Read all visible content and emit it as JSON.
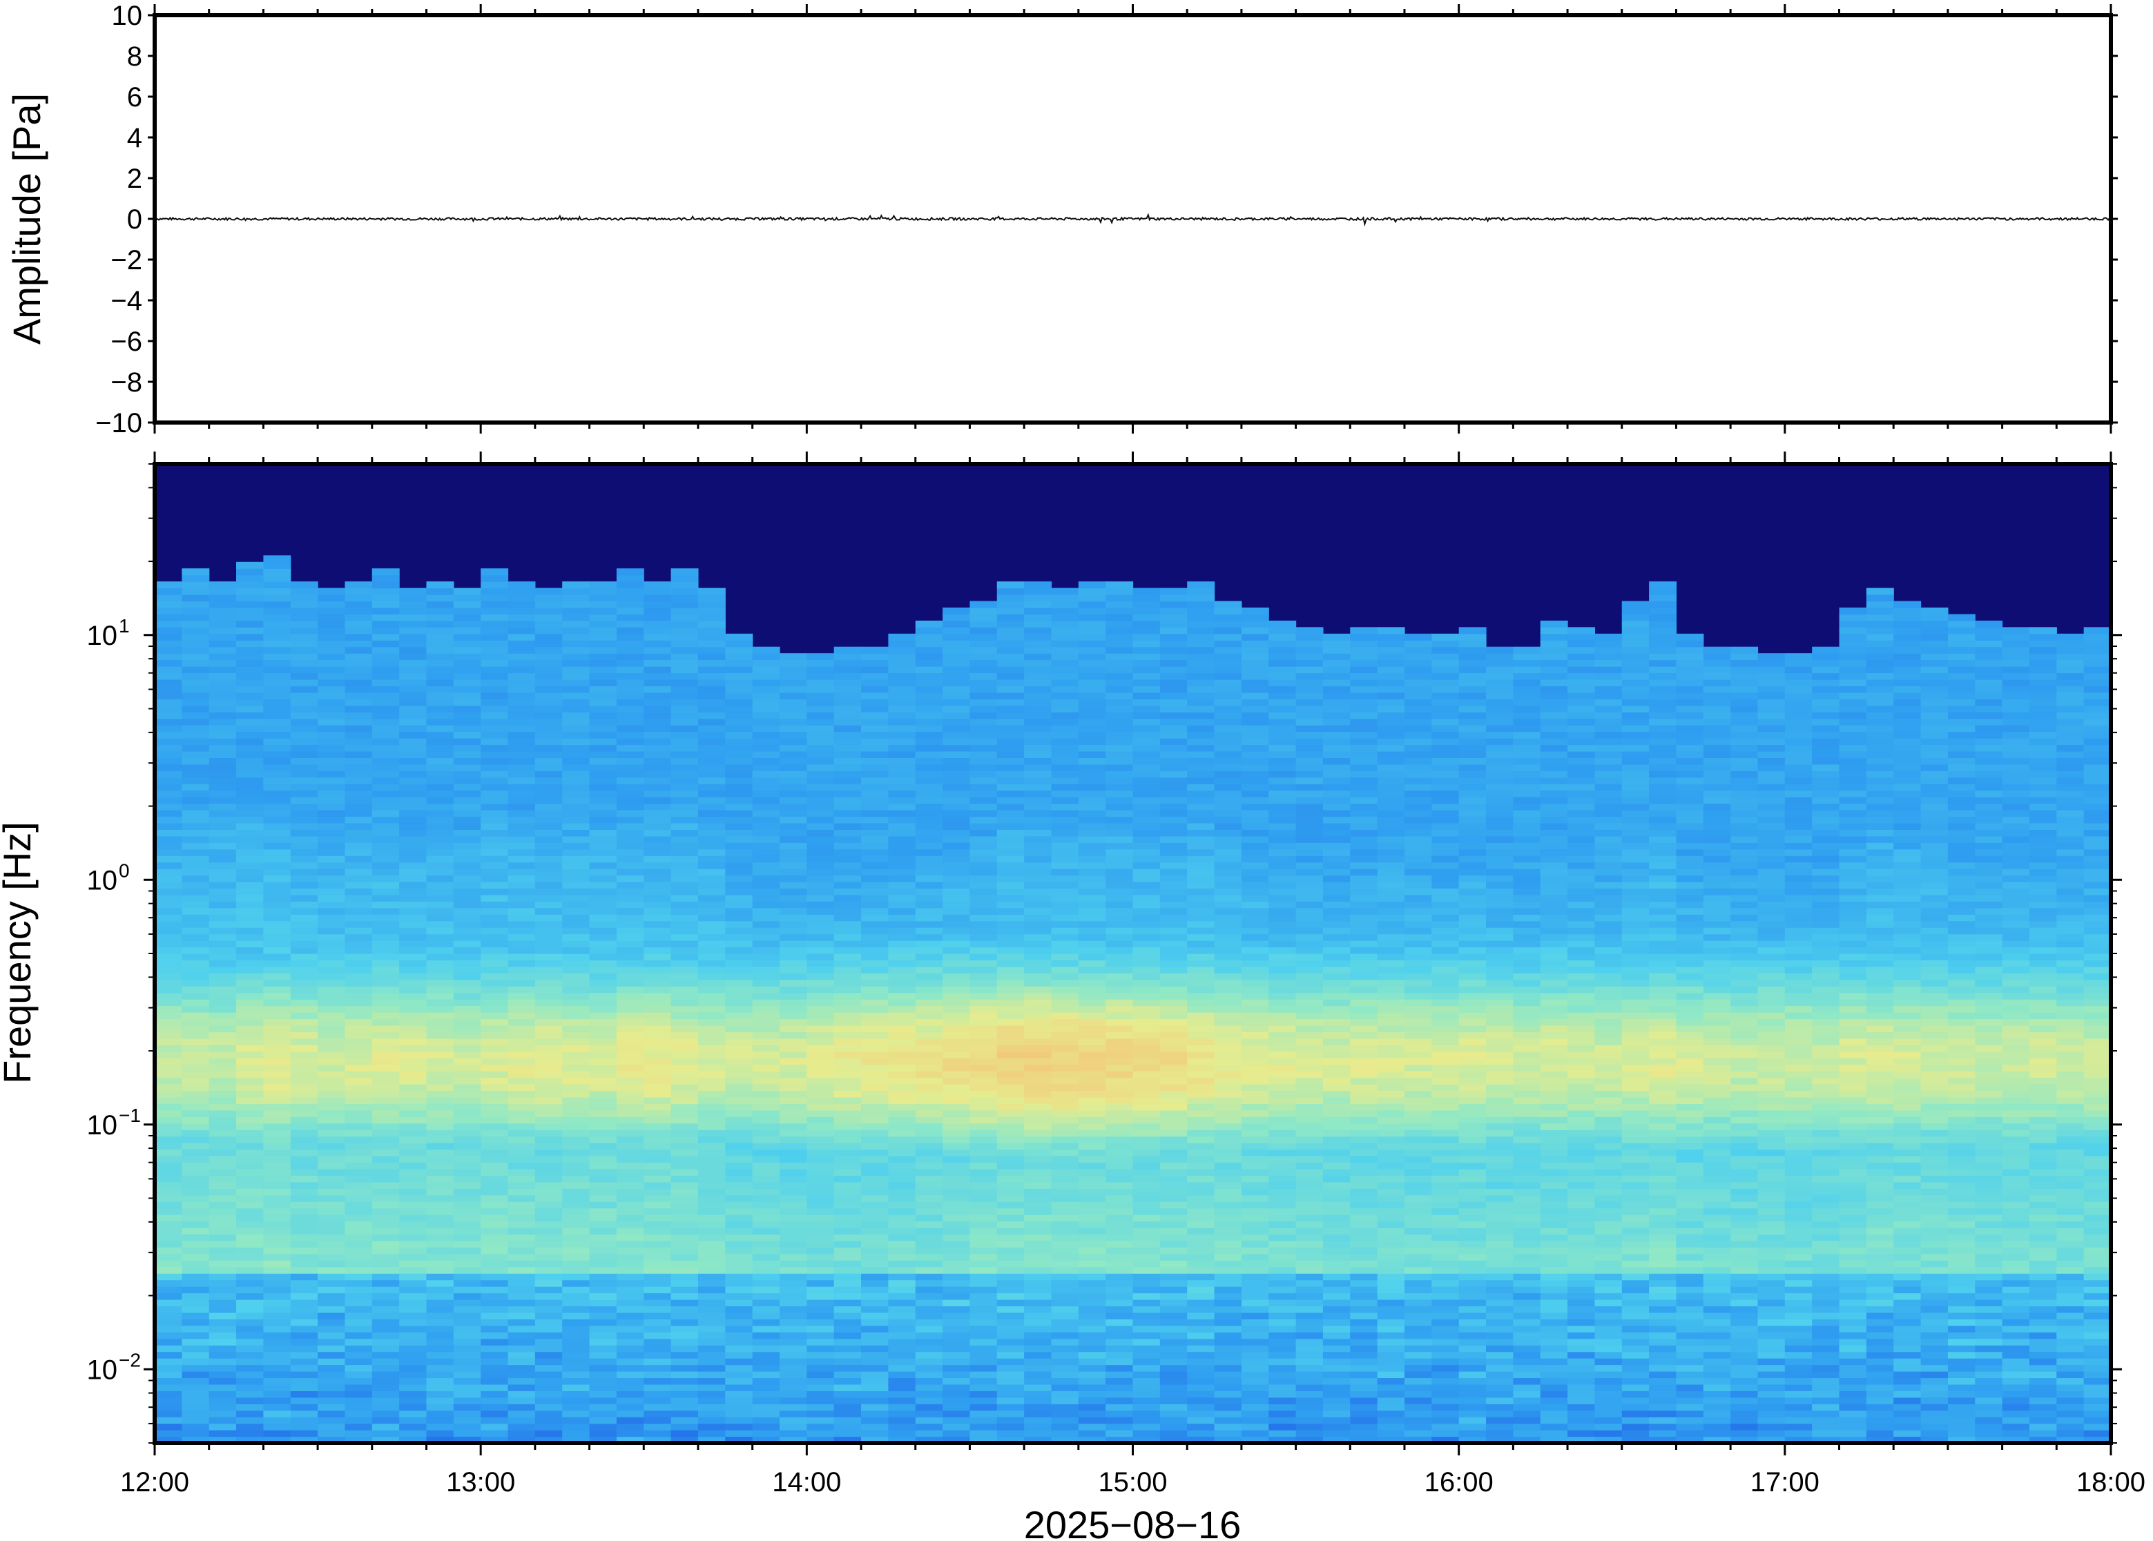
{
  "chart_data": [
    {
      "type": "line",
      "ylabel": "Amplitude [Pa]",
      "ylim": [
        -10,
        10
      ],
      "yticks": [
        10,
        8,
        6,
        4,
        2,
        0,
        -2,
        -4,
        -6,
        -8,
        -10
      ],
      "ytick_labels": [
        "10",
        "8",
        "6",
        "4",
        "2",
        "0",
        "−2",
        "−4",
        "−6",
        "−8",
        "−10"
      ],
      "x_start_hour": 12,
      "x_end_hour": 18,
      "series": [
        {
          "values": [
            0.02,
            -0.03,
            0.05,
            -0.02,
            0.04,
            -0.06,
            0.03,
            0.08,
            -0.04,
            0.06,
            -0.05,
            0.1,
            -0.08,
            0.12,
            -0.1,
            0.06,
            0.18,
            -0.15,
            0.22,
            -0.12,
            0.14,
            0.28,
            -0.2,
            0.08,
            -0.06,
            0.05,
            0.04,
            -0.03,
            0.3,
            -0.22,
            0.06,
            -0.04,
            0.03,
            -0.02,
            0.02,
            -0.03
          ]
        }
      ],
      "grid": false
    },
    {
      "type": "heatmap",
      "ylabel": "Frequency [Hz]",
      "xlabel": "2025−08−16",
      "yscale": "log",
      "ylim": [
        0.005,
        50
      ],
      "yticks": [
        {
          "base": "10",
          "exp": "1",
          "value": 10
        },
        {
          "base": "10",
          "exp": "0",
          "value": 1
        },
        {
          "base": "10",
          "exp": "−1",
          "value": 0.1
        },
        {
          "base": "10",
          "exp": "−2",
          "value": 0.01
        }
      ],
      "xticks": [
        "12:00",
        "13:00",
        "14:00",
        "15:00",
        "16:00",
        "17:00",
        "18:00"
      ],
      "colormap": [
        "#0d0d73",
        "#1228b8",
        "#1f5ee6",
        "#2f9ef0",
        "#4fd0ee",
        "#8fe8c6",
        "#e6ec8e",
        "#f2c87a"
      ],
      "columns": 72,
      "upper_edge_hz": [
        12,
        13,
        12,
        14,
        15,
        12,
        11,
        12,
        13,
        11,
        12,
        11,
        13,
        12,
        11,
        12,
        12,
        13,
        12,
        13,
        11,
        7,
        6.5,
        6,
        6,
        6.5,
        6.5,
        7,
        8,
        9,
        10,
        12,
        12,
        11,
        12,
        12,
        11,
        11,
        12,
        10,
        9,
        8,
        7.5,
        7,
        7.5,
        7.5,
        7,
        7,
        7.5,
        6.5,
        6.5,
        8,
        7.5,
        7,
        10,
        12,
        7,
        6.5,
        6.5,
        6,
        6,
        6.5,
        9,
        11,
        10,
        9,
        8.5,
        8,
        7.5,
        7.5,
        7,
        7.5
      ],
      "midband_peak_hz": 0.18,
      "midband_strength": [
        0.7,
        0.72,
        0.7,
        0.74,
        0.76,
        0.74,
        0.72,
        0.73,
        0.75,
        0.74,
        0.73,
        0.72,
        0.74,
        0.75,
        0.76,
        0.75,
        0.74,
        0.76,
        0.77,
        0.75,
        0.73,
        0.72,
        0.72,
        0.73,
        0.75,
        0.77,
        0.78,
        0.79,
        0.8,
        0.82,
        0.84,
        0.86,
        0.87,
        0.86,
        0.85,
        0.84,
        0.83,
        0.82,
        0.8,
        0.78,
        0.76,
        0.75,
        0.74,
        0.73,
        0.74,
        0.74,
        0.73,
        0.73,
        0.74,
        0.73,
        0.72,
        0.74,
        0.73,
        0.72,
        0.74,
        0.75,
        0.73,
        0.72,
        0.71,
        0.72,
        0.72,
        0.71,
        0.73,
        0.74,
        0.73,
        0.72,
        0.72,
        0.71,
        0.72,
        0.72,
        0.71,
        0.72
      ],
      "grid": false
    }
  ]
}
